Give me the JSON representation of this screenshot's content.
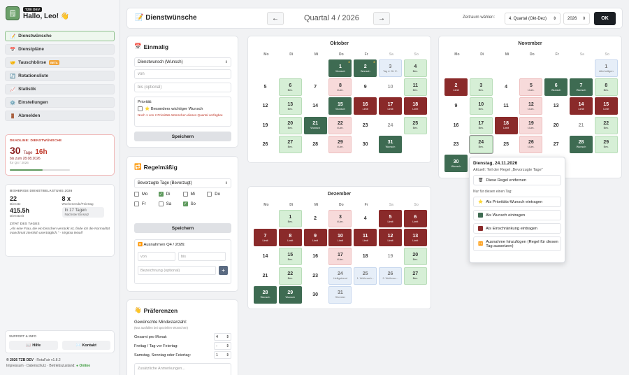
{
  "app": {
    "tag": "TZB DEV",
    "greeting": "Hallo, Leo! 👋"
  },
  "nav": [
    {
      "label": "Dienstwünsche",
      "icon": "📝"
    },
    {
      "label": "Dienstpläne",
      "icon": "📅"
    },
    {
      "label": "Tauschbörse",
      "icon": "🤝",
      "beta": "BETA"
    },
    {
      "label": "Rotationsliste",
      "icon": "🔄"
    },
    {
      "label": "Statistik",
      "icon": "📈"
    },
    {
      "label": "Einstellungen",
      "icon": "⚙️"
    },
    {
      "label": "Abmelden",
      "icon": "🚪"
    }
  ],
  "deadline": {
    "label": "DEADLINE: DIENSTWÜNSCHE",
    "days": "30",
    "days_unit": "Tage",
    "hours": "16h",
    "until": "bis zum 28.08.2026",
    "for": "für Q4 / 2026",
    "progress": 0.55
  },
  "stats": {
    "label": "BISHERIGE DIENSTBELASTUNG 2026",
    "dienste": "22",
    "dienste_lbl": "Dienste",
    "we": "8 x",
    "we_lbl": "Wochenende/Feiertag",
    "stunden": "415.5h",
    "stunden_lbl": "Dienstzeit",
    "next": "In 17 Tagen",
    "next_lbl": "Nächster Einsatz",
    "quote_lbl": "ZITAT DES TAGES",
    "quote": "„Als eine Frau, die ein bisschen verrückt ist, finde ich die Normalität manchmal ziemlich unerträglich.\" - Virginia Woolf"
  },
  "support": {
    "label": "SUPPORT & INFO",
    "help": "Hilfe",
    "contact": "Kontakt",
    "help_icon": "📖",
    "contact_icon": "✉️"
  },
  "footer": {
    "copy": "© 2026 TZB DEV",
    "version": "· RotaFair v1.8.2",
    "links": "Impressum · Datenschutz · Betriebszustand:",
    "status": "● Online"
  },
  "header": {
    "title": "Dienstwünsche",
    "icon": "📝",
    "prev": "←",
    "next": "→",
    "quarter": "Quartal 4 / 2026",
    "zeitraum": "Zeitraum wählen:",
    "quarter_select": "4. Quartal (Okt-Dez)",
    "year_select": "2026",
    "ok": "OK"
  },
  "einmalig": {
    "title": "Einmalig",
    "icon": "📅",
    "type": "Dienstwunsch (Wunsch)",
    "von": "von",
    "bis": "bis (optional)",
    "prio_lbl": "Priorität:",
    "prio": "⭐ Besonders wichtiger Wunsch",
    "prio_note": "Noch 1 von 2 Prioritäts-Wünschen dieses Quartal verfügbar.",
    "save": "Speichern"
  },
  "regel": {
    "title": "Regelmäßig",
    "icon": "🔁",
    "type": "Bevorzugte Tage (Bevorzugt)",
    "days": [
      {
        "l": "Mo",
        "on": false
      },
      {
        "l": "Di",
        "on": true
      },
      {
        "l": "Mi",
        "on": false
      },
      {
        "l": "Do",
        "on": false
      },
      {
        "l": "Fr",
        "on": false
      },
      {
        "l": "Sa",
        "on": false
      },
      {
        "l": "So",
        "on": true
      }
    ],
    "save": "Speichern",
    "ausnahmen": "Ausnahmen Q4 / 2026:",
    "von": "von",
    "bis": "bis",
    "bez": "Bezeichnung (optional)",
    "add": "+"
  },
  "praef": {
    "title": "Präferenzen",
    "icon": "👋",
    "lbl": "Gewünschte Mindestanzahl:",
    "sub": "(Nur ausfüllen bei speziellen Wünschen)",
    "rows": [
      {
        "l": "Gesamt pro Monat:",
        "v": "4"
      },
      {
        "l": "Freitag / Tag vor Feiertag:",
        "v": "-"
      },
      {
        "l": "Samstag, Sonntag oder Feiertag:",
        "v": "1"
      }
    ],
    "note": "Zusätzliche Anmerkungen..."
  },
  "weekdays": [
    "Mo",
    "Di",
    "Mi",
    "Do",
    "Fr",
    "Sa",
    "So"
  ],
  "months": [
    {
      "name": "Oktober",
      "start": 3,
      "days": [
        [
          "1",
          "dgreen",
          "Wunsch",
          1
        ],
        [
          "2",
          "dgreen",
          "Wunsch",
          1
        ],
        [
          "3",
          "blue",
          "Tag d. Dt. E."
        ],
        [
          "4",
          "green",
          "Bev."
        ],
        [
          "5",
          "",
          ""
        ],
        [
          "6",
          "green",
          "Bev."
        ],
        [
          "7",
          "",
          ""
        ],
        [
          "8",
          "pink",
          "t.Lim."
        ],
        [
          "9",
          "",
          ""
        ],
        [
          "10",
          "",
          ""
        ],
        [
          "11",
          "green",
          "Bev."
        ],
        [
          "12",
          "",
          ""
        ],
        [
          "13",
          "green",
          "Bev."
        ],
        [
          "14",
          "",
          ""
        ],
        [
          "15",
          "dgreen",
          "Wunsch"
        ],
        [
          "16",
          "red",
          "Limit"
        ],
        [
          "17",
          "red",
          "Limit"
        ],
        [
          "18",
          "red",
          "Limit"
        ],
        [
          "19",
          "",
          ""
        ],
        [
          "20",
          "green",
          "Bev."
        ],
        [
          "21",
          "dgreen",
          "Wunsch"
        ],
        [
          "22",
          "pink",
          "t.Lim."
        ],
        [
          "23",
          "",
          ""
        ],
        [
          "24",
          "",
          ""
        ],
        [
          "25",
          "green",
          "Bev."
        ],
        [
          "26",
          "",
          ""
        ],
        [
          "27",
          "green",
          "Bev."
        ],
        [
          "28",
          "",
          ""
        ],
        [
          "29",
          "pink",
          "t.Lim."
        ],
        [
          "30",
          "",
          ""
        ],
        [
          "31",
          "dgreen",
          "Wunsch"
        ]
      ]
    },
    {
      "name": "November",
      "start": 6,
      "days": [
        [
          "1",
          "blue",
          "Allerheiligen"
        ],
        [
          "2",
          "red",
          "Limit"
        ],
        [
          "3",
          "green",
          "Bev."
        ],
        [
          "4",
          "",
          ""
        ],
        [
          "5",
          "pink",
          "t.Lim."
        ],
        [
          "6",
          "dgreen",
          "Wunsch"
        ],
        [
          "7",
          "dgreen",
          "Wunsch"
        ],
        [
          "8",
          "green",
          "Bev."
        ],
        [
          "9",
          "",
          ""
        ],
        [
          "10",
          "green",
          "Bev."
        ],
        [
          "11",
          "",
          ""
        ],
        [
          "12",
          "pink",
          "t.Lim."
        ],
        [
          "13",
          "",
          ""
        ],
        [
          "14",
          "red",
          "Limit"
        ],
        [
          "15",
          "red",
          "Limit"
        ],
        [
          "16",
          "",
          ""
        ],
        [
          "17",
          "green",
          "Bev."
        ],
        [
          "18",
          "red",
          "Limit"
        ],
        [
          "19",
          "pink",
          "t.Lim."
        ],
        [
          "20",
          "",
          ""
        ],
        [
          "21",
          "",
          ""
        ],
        [
          "22",
          "green",
          "Bev."
        ],
        [
          "23",
          "",
          ""
        ],
        [
          "24",
          "green",
          "Bev."
        ],
        [
          "25",
          "",
          ""
        ],
        [
          "26",
          "pink",
          "t.Lim."
        ],
        [
          "27",
          "",
          ""
        ],
        [
          "28",
          "dgreen",
          "Wunsch"
        ],
        [
          "29",
          "green",
          "Bev."
        ],
        [
          "30",
          "dgreen",
          "Wunsch"
        ]
      ]
    },
    {
      "name": "Dezember",
      "start": 1,
      "days": [
        [
          "1",
          "green",
          "Bev."
        ],
        [
          "2",
          "",
          ""
        ],
        [
          "3",
          "pink",
          "t.Lim."
        ],
        [
          "4",
          "",
          ""
        ],
        [
          "5",
          "red",
          "Limit"
        ],
        [
          "6",
          "red",
          "Limit"
        ],
        [
          "7",
          "red",
          "Limit"
        ],
        [
          "8",
          "red",
          "Limit"
        ],
        [
          "9",
          "red",
          "Limit"
        ],
        [
          "10",
          "red",
          "Limit"
        ],
        [
          "11",
          "red",
          "Limit"
        ],
        [
          "12",
          "red",
          "Limit"
        ],
        [
          "13",
          "red",
          "Limit"
        ],
        [
          "14",
          "",
          ""
        ],
        [
          "15",
          "green",
          "Bev."
        ],
        [
          "16",
          "",
          ""
        ],
        [
          "17",
          "pink",
          "t.Lim."
        ],
        [
          "18",
          "",
          ""
        ],
        [
          "19",
          "",
          ""
        ],
        [
          "20",
          "green",
          "Bev."
        ],
        [
          "21",
          "",
          ""
        ],
        [
          "22",
          "green",
          "Bev."
        ],
        [
          "23",
          "",
          ""
        ],
        [
          "24",
          "blue",
          "Heiligabend"
        ],
        [
          "25",
          "blue",
          "1. Weihnach..."
        ],
        [
          "26",
          "blue",
          "2. Weihnac..."
        ],
        [
          "27",
          "green",
          "Bev."
        ],
        [
          "28",
          "dgreen",
          "Wunsch"
        ],
        [
          "29",
          "dgreen",
          "Wunsch"
        ],
        [
          "30",
          "",
          ""
        ],
        [
          "31",
          "blue",
          "Silvester"
        ]
      ]
    }
  ],
  "popup": {
    "title": "Dienstag, 24.11.2026",
    "sub": "Aktuell: Teil der Regel „Bevorzugte Tage\"",
    "remove": "Diese Regel entfernen",
    "remove_icon": "🗑",
    "only": "Nur für diesen einen Tag:",
    "prio": "Als Prioritäts-Wunsch eintragen",
    "prio_icon": "⭐",
    "wunsch": "Als Wunsch eintragen",
    "wunsch_color": "#3e6b52",
    "limit": "Als Einschränkung eintragen",
    "limit_color": "#8a2a2a",
    "ausnahme": "Ausnahme hinzufügen (Regel für diesen Tag aussetzen)",
    "ausnahme_icon": "⏸️"
  }
}
